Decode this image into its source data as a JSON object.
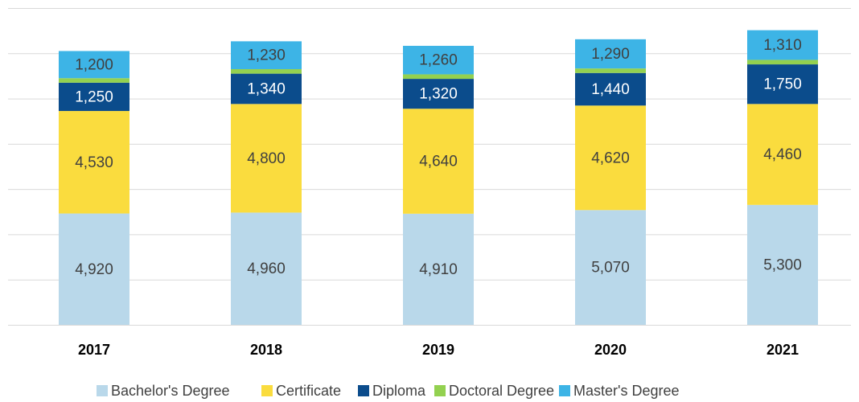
{
  "chart_data": {
    "type": "stacked_bar",
    "categories": [
      "2017",
      "2018",
      "2019",
      "2020",
      "2021"
    ],
    "series": [
      {
        "name": "Bachelor's Degree",
        "color": "#b9d8ea",
        "values": [
          4920,
          4960,
          4910,
          5070,
          5300
        ],
        "value_labels": [
          "4,920",
          "4,960",
          "4,910",
          "5,070",
          "5,300"
        ]
      },
      {
        "name": "Certificate",
        "color": "#fadc3e",
        "values": [
          4530,
          4800,
          4640,
          4620,
          4460
        ],
        "value_labels": [
          "4,530",
          "4,800",
          "4,640",
          "4,620",
          "4,460"
        ]
      },
      {
        "name": "Diploma",
        "color": "#0b4c8c",
        "values": [
          1250,
          1340,
          1320,
          1440,
          1750
        ],
        "value_labels": [
          "1,250",
          "1,340",
          "1,320",
          "1,440",
          "1,750"
        ]
      },
      {
        "name": "Doctoral Degree",
        "color": "#93d150",
        "values": [
          200,
          200,
          200,
          200,
          200
        ]
      },
      {
        "name": "Master's Degree",
        "color": "#3db4e6",
        "values": [
          1200,
          1230,
          1260,
          1290,
          1310
        ],
        "value_labels": [
          "1,200",
          "1,230",
          "1,260",
          "1,290",
          "1,310"
        ]
      }
    ],
    "ylim": [
      0,
      14000
    ],
    "yticks": [
      0,
      2000,
      4000,
      6000,
      8000,
      10000,
      12000,
      14000
    ],
    "grid": true,
    "legend": "bottom"
  }
}
